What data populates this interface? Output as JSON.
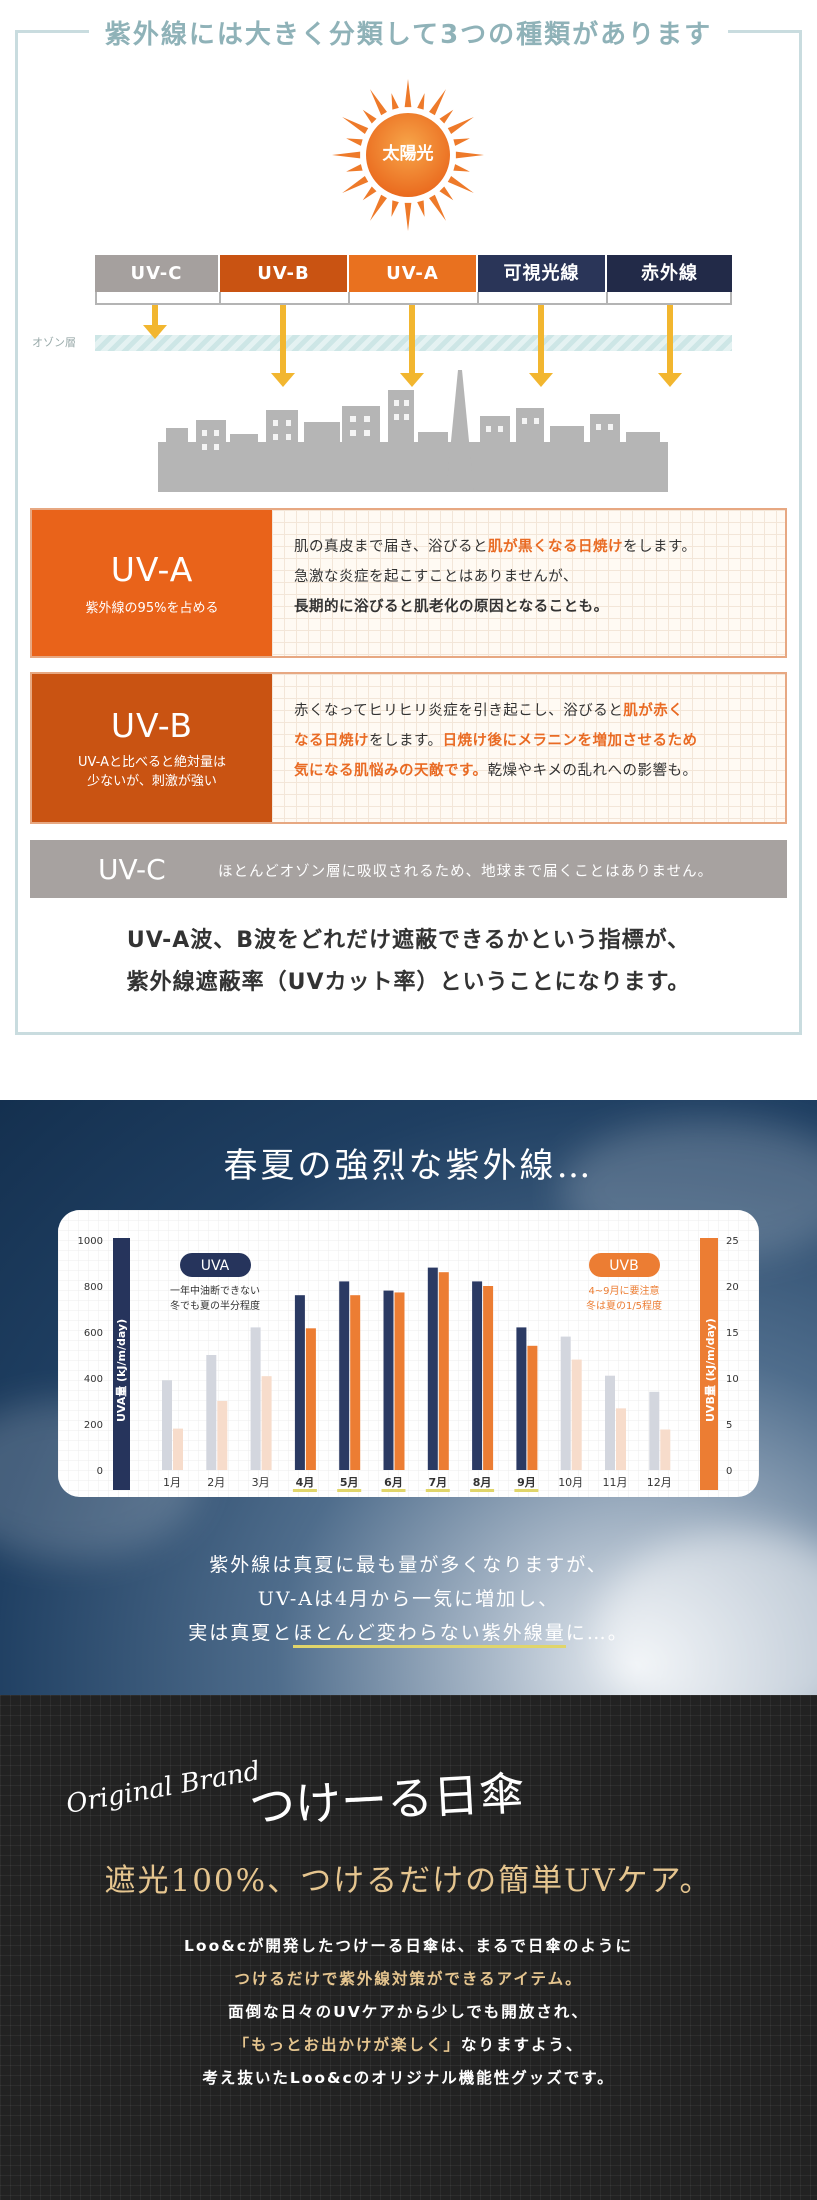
{
  "section1": {
    "title": "紫外線には大きく分類して3つの種類があります",
    "sun_label": "太陽光",
    "bands": [
      {
        "label": "UV-C",
        "color": "#a5a09e"
      },
      {
        "label": "UV-B",
        "color": "#c95312"
      },
      {
        "label": "UV-A",
        "color": "#e9711f"
      },
      {
        "label": "可視光線",
        "color": "#2a3558"
      },
      {
        "label": "赤外線",
        "color": "#222a48"
      }
    ],
    "ozone_label": "オゾン層",
    "uva": {
      "name": "UV-A",
      "sub": "紫外線の95%を占める",
      "line1_a": "肌の真皮まで届き、浴びると",
      "line1_hl": "肌が黒くなる日焼け",
      "line1_b": "をします。",
      "line2": "急激な炎症を起こすことはありませんが、",
      "line3_hl": "長期的に浴びると肌老化の原因となることも。"
    },
    "uvb": {
      "name": "UV-B",
      "sub1": "UV-Aと比べると絶対量は",
      "sub2": "少ないが、刺激が強い",
      "line1_a": "赤くなってヒリヒリ炎症を引き起こし、浴びると",
      "line1_hl": "肌が赤く",
      "line2_hl": "なる日焼け",
      "line2_a": "をします。",
      "line2_hl2": "日焼け後にメラニンを増加させるため",
      "line3_hl": "気になる肌悩みの天敵です。",
      "line3_a": "乾燥やキメの乱れへの影響も。"
    },
    "uvc": {
      "name": "UV-C",
      "text": "ほとんどオゾン層に吸収されるため、地球まで届くことはありません。"
    },
    "note_line1": "UV-A波、B波をどれだけ遮蔽できるかという指標が、",
    "note_line2": "紫外線遮蔽率（UVカット率）ということになります。",
    "colors": {
      "uva": "#e9631a",
      "uvb": "#c95312",
      "uvc": "#a7a2a0",
      "arrow": "#f2b62f"
    }
  },
  "section2": {
    "title": "春夏の強烈な紫外線…",
    "text_line1": "紫外線は真夏に最も量が多くなりますが、",
    "text_line2": "UV-Aは4月から一気に増加し、",
    "text_line3_a": "実は真夏と",
    "text_line3_ul": "ほとんど変わらない紫外線量",
    "text_line3_b": "に…。"
  },
  "chart_data": {
    "type": "bar",
    "categories": [
      "1月",
      "2月",
      "3月",
      "4月",
      "5月",
      "6月",
      "7月",
      "8月",
      "9月",
      "10月",
      "11月",
      "12月"
    ],
    "highlight_categories": [
      "4月",
      "5月",
      "6月",
      "7月",
      "8月",
      "9月"
    ],
    "series": [
      {
        "name": "UVA",
        "axis": "left",
        "color": "#2b3a63",
        "values": [
          390,
          500,
          620,
          760,
          820,
          780,
          880,
          820,
          620,
          580,
          410,
          340
        ]
      },
      {
        "name": "UVB",
        "axis": "right",
        "color": "#ec7d33",
        "values": [
          4.5,
          7.5,
          10.2,
          15.4,
          19,
          19.3,
          21.5,
          20,
          13.5,
          12,
          6.7,
          4.4
        ]
      }
    ],
    "ylabel": "UVA量 (kJ/m/day)",
    "ylabel_right": "UVB量 (kJ/m/day)",
    "ylim": [
      0,
      1000
    ],
    "ylim_right": [
      0,
      25
    ],
    "yticks": [
      "0",
      "200",
      "400",
      "600",
      "800",
      "1000"
    ],
    "yticks_right": [
      "0",
      "5",
      "10",
      "15",
      "20",
      "25"
    ],
    "legend_uva": "UVA",
    "legend_uva_note1": "一年中油断できない",
    "legend_uva_note2": "冬でも夏の半分程度",
    "legend_uvb": "UVB",
    "legend_uvb_note1": "4~9月に要注意",
    "legend_uvb_note2": "冬は夏の1/5程度",
    "grid": true
  },
  "section3": {
    "brand_script": "Original Brand",
    "brand_name": "つけーる日傘",
    "headline": "遮光100%、つけるだけの簡単UVケア。",
    "line1": "Loo&cが開発したつけーる日傘は、まるで日傘のように",
    "line2_gold": "つけるだけで紫外線対策ができるアイテム。",
    "line3": "面倒な日々のUVケアから少しでも開放され、",
    "line4_gold": "「もっとお出かけが楽しく」",
    "line4_b": "なりますよう、",
    "line5": "考え抜いたLoo&cのオリジナル機能性グッズです。"
  }
}
